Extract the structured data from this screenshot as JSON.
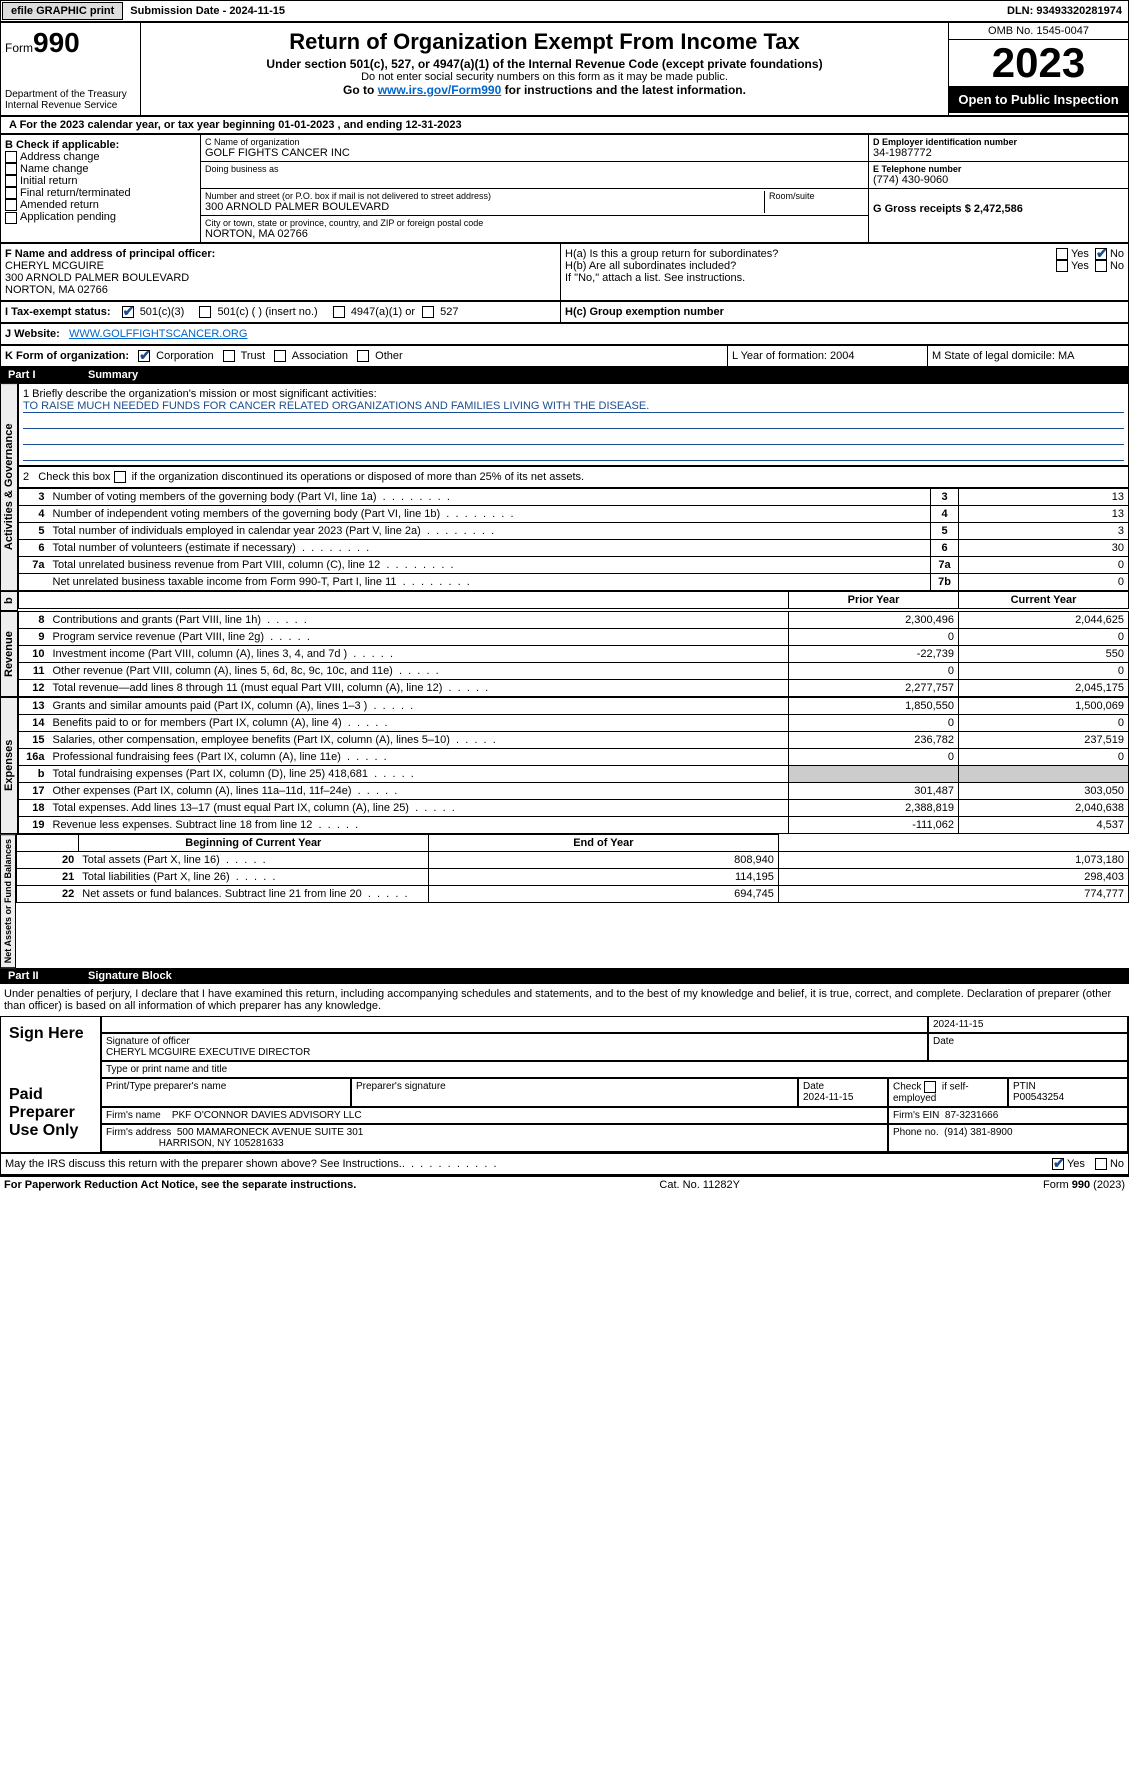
{
  "topbar": {
    "efile_label": "efile GRAPHIC print",
    "submission_label": "Submission Date - 2024-11-15",
    "dln_label": "DLN: 93493320281974"
  },
  "header": {
    "form_prefix": "Form",
    "form_number": "990",
    "dept": "Department of the Treasury Internal Revenue Service",
    "title": "Return of Organization Exempt From Income Tax",
    "subtitle": "Under section 501(c), 527, or 4947(a)(1) of the Internal Revenue Code (except private foundations)",
    "ssn_note": "Do not enter social security numbers on this form as it may be made public.",
    "goto": "Go to ",
    "goto_link": "www.irs.gov/Form990",
    "goto_suffix": " for instructions and the latest information.",
    "omb": "OMB No. 1545-0047",
    "year": "2023",
    "inspection": "Open to Public Inspection"
  },
  "section_a": {
    "text": "A   For the 2023 calendar year, or tax year beginning 01-01-2023    , and ending 12-31-2023"
  },
  "col_b": {
    "header": "B Check if applicable:",
    "items": [
      "Address change",
      "Name change",
      "Initial return",
      "Final return/terminated",
      "Amended return",
      "Application pending"
    ]
  },
  "col_c": {
    "name_lbl": "C Name of organization",
    "name": "GOLF FIGHTS CANCER INC",
    "dba_lbl": "Doing business as",
    "dba": "",
    "addr_lbl": "Number and street (or P.O. box if mail is not delivered to street address)",
    "addr": "300 ARNOLD PALMER BOULEVARD",
    "room_lbl": "Room/suite",
    "city_lbl": "City or town, state or province, country, and ZIP or foreign postal code",
    "city": "NORTON, MA  02766"
  },
  "col_de": {
    "d_lbl": "D Employer identification number",
    "d_val": "34-1987772",
    "e_lbl": "E Telephone number",
    "e_val": "(774) 430-9060",
    "g_lbl": "G Gross receipts $ 2,472,586"
  },
  "officer": {
    "f_lbl": "F  Name and address of principal officer:",
    "name": "CHERYL MCGUIRE",
    "addr1": "300 ARNOLD PALMER BOULEVARD",
    "addr2": "NORTON, MA  02766"
  },
  "section_h": {
    "ha": "H(a)  Is this a group return for subordinates?",
    "hb": "H(b)  Are all subordinates included?",
    "hb_note": "If \"No,\" attach a list. See instructions.",
    "hc": "H(c)  Group exemption number"
  },
  "section_i": {
    "label": "I   Tax-exempt status:",
    "opt1": "501(c)(3)",
    "opt2": "501(c) (  ) (insert no.)",
    "opt3": "4947(a)(1) or",
    "opt4": "527"
  },
  "section_j": {
    "label": "J   Website:",
    "value": "WWW.GOLFFIGHTSCANCER.ORG"
  },
  "section_k": {
    "label": "K Form of organization:",
    "opts": [
      "Corporation",
      "Trust",
      "Association",
      "Other"
    ]
  },
  "section_l": {
    "label": "L Year of formation: 2004"
  },
  "section_m": {
    "label": "M State of legal domicile: MA"
  },
  "part1": {
    "header_part": "Part I",
    "header_title": "Summary",
    "q1_lbl": "1   Briefly describe the organization's mission or most significant activities:",
    "q1_val": "TO RAISE MUCH NEEDED FUNDS FOR CANCER RELATED ORGANIZATIONS AND FAMILIES LIVING WITH THE DISEASE.",
    "q2": "2    Check this box      if the organization discontinued its operations or disposed of more than 25% of its net assets.",
    "lines": [
      {
        "n": "3",
        "d": "Number of voting members of the governing body (Part VI, line 1a)",
        "c": "3",
        "v": "13"
      },
      {
        "n": "4",
        "d": "Number of independent voting members of the governing body (Part VI, line 1b)",
        "c": "4",
        "v": "13"
      },
      {
        "n": "5",
        "d": "Total number of individuals employed in calendar year 2023 (Part V, line 2a)",
        "c": "5",
        "v": "3"
      },
      {
        "n": "6",
        "d": "Total number of volunteers (estimate if necessary)",
        "c": "6",
        "v": "30"
      },
      {
        "n": "7a",
        "d": "Total unrelated business revenue from Part VIII, column (C), line 12",
        "c": "7a",
        "v": "0"
      },
      {
        "n": "",
        "d": "Net unrelated business taxable income from Form 990-T, Part I, line 11",
        "c": "7b",
        "v": "0"
      }
    ],
    "col_headers": {
      "prior": "Prior Year",
      "current": "Current Year"
    },
    "revenue": [
      {
        "n": "8",
        "d": "Contributions and grants (Part VIII, line 1h)",
        "p": "2,300,496",
        "c": "2,044,625"
      },
      {
        "n": "9",
        "d": "Program service revenue (Part VIII, line 2g)",
        "p": "0",
        "c": "0"
      },
      {
        "n": "10",
        "d": "Investment income (Part VIII, column (A), lines 3, 4, and 7d )",
        "p": "-22,739",
        "c": "550"
      },
      {
        "n": "11",
        "d": "Other revenue (Part VIII, column (A), lines 5, 6d, 8c, 9c, 10c, and 11e)",
        "p": "0",
        "c": "0"
      },
      {
        "n": "12",
        "d": "Total revenue—add lines 8 through 11 (must equal Part VIII, column (A), line 12)",
        "p": "2,277,757",
        "c": "2,045,175"
      }
    ],
    "expenses": [
      {
        "n": "13",
        "d": "Grants and similar amounts paid (Part IX, column (A), lines 1–3 )",
        "p": "1,850,550",
        "c": "1,500,069"
      },
      {
        "n": "14",
        "d": "Benefits paid to or for members (Part IX, column (A), line 4)",
        "p": "0",
        "c": "0"
      },
      {
        "n": "15",
        "d": "Salaries, other compensation, employee benefits (Part IX, column (A), lines 5–10)",
        "p": "236,782",
        "c": "237,519"
      },
      {
        "n": "16a",
        "d": "Professional fundraising fees (Part IX, column (A), line 11e)",
        "p": "0",
        "c": "0"
      },
      {
        "n": "b",
        "d": "Total fundraising expenses (Part IX, column (D), line 25) 418,681",
        "p": "GREY",
        "c": "GREY"
      },
      {
        "n": "17",
        "d": "Other expenses (Part IX, column (A), lines 11a–11d, 11f–24e)",
        "p": "301,487",
        "c": "303,050"
      },
      {
        "n": "18",
        "d": "Total expenses. Add lines 13–17 (must equal Part IX, column (A), line 25)",
        "p": "2,388,819",
        "c": "2,040,638"
      },
      {
        "n": "19",
        "d": "Revenue less expenses. Subtract line 18 from line 12",
        "p": "-111,062",
        "c": "4,537"
      }
    ],
    "balance_headers": {
      "begin": "Beginning of Current Year",
      "end": "End of Year"
    },
    "balances": [
      {
        "n": "20",
        "d": "Total assets (Part X, line 16)",
        "p": "808,940",
        "c": "1,073,180"
      },
      {
        "n": "21",
        "d": "Total liabilities (Part X, line 26)",
        "p": "114,195",
        "c": "298,403"
      },
      {
        "n": "22",
        "d": "Net assets or fund balances. Subtract line 21 from line 20",
        "p": "694,745",
        "c": "774,777"
      }
    ],
    "vert_labels": {
      "gov": "Activities & Governance",
      "rev": "Revenue",
      "exp": "Expenses",
      "net": "Net Assets or Fund Balances"
    }
  },
  "part2": {
    "header_part": "Part II",
    "header_title": "Signature Block",
    "perjury": "Under penalties of perjury, I declare that I have examined this return, including accompanying schedules and statements, and to the best of my knowledge and belief, it is true, correct, and complete. Declaration of preparer (other than officer) is based on all information of which preparer has any knowledge.",
    "sign_here": "Sign Here",
    "sig_date": "2024-11-15",
    "sig_officer_lbl": "Signature of officer",
    "sig_date_lbl": "Date",
    "officer_name": "CHERYL MCGUIRE  EXECUTIVE DIRECTOR",
    "officer_type_lbl": "Type or print name and title",
    "paid_prep": "Paid Preparer Use Only",
    "prep_name_lbl": "Print/Type preparer's name",
    "prep_sig_lbl": "Preparer's signature",
    "prep_date_lbl": "Date",
    "prep_date": "2024-11-15",
    "prep_check_lbl": "Check        if self-employed",
    "ptin_lbl": "PTIN",
    "ptin": "P00543254",
    "firm_name_lbl": "Firm's name",
    "firm_name": "PKF O'CONNOR DAVIES ADVISORY LLC",
    "firm_ein_lbl": "Firm's EIN",
    "firm_ein": "87-3231666",
    "firm_addr_lbl": "Firm's address",
    "firm_addr": "500 MAMARONECK AVENUE SUITE 301",
    "firm_addr2": "HARRISON, NY  105281633",
    "firm_phone_lbl": "Phone no.",
    "firm_phone": "(914) 381-8900",
    "discuss": "May the IRS discuss this return with the preparer shown above? See Instructions."
  },
  "footer": {
    "paperwork": "For Paperwork Reduction Act Notice, see the separate instructions.",
    "catno": "Cat. No. 11282Y",
    "formid": "Form 990 (2023)"
  },
  "yes": "Yes",
  "no": "No"
}
